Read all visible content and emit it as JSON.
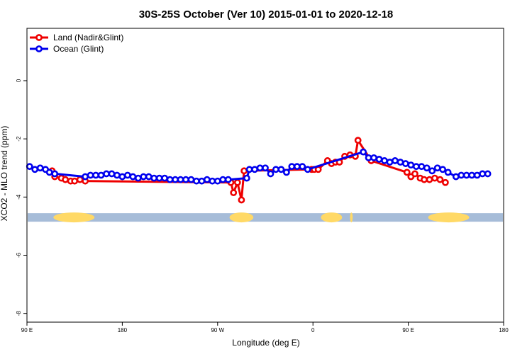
{
  "chart_data": {
    "type": "line",
    "title": "30S-25S October (Ver 10)   2015-01-01 to 2020-12-18",
    "xlabel": "Longitude (deg E)",
    "ylabel": "XCO2 - MLO trend (ppm)",
    "xlim": [
      90,
      450
    ],
    "ylim": [
      -8.3,
      1.8
    ],
    "x_ticks": [
      {
        "value": 90,
        "label": "90 E"
      },
      {
        "value": 162,
        "label": "180"
      },
      {
        "value": 234,
        "label": "90 W"
      },
      {
        "value": 306,
        "label": "0"
      },
      {
        "value": 378,
        "label": "90 E"
      },
      {
        "value": 450,
        "label": "180"
      }
    ],
    "y_ticks": [
      {
        "value": 0,
        "label": "0"
      },
      {
        "value": -2,
        "label": "-2"
      },
      {
        "value": -4,
        "label": "-4"
      },
      {
        "value": -6,
        "label": "-6"
      },
      {
        "value": -8,
        "label": "-8"
      }
    ],
    "legend_position": "top-left",
    "grid": false,
    "land_ocean_strip": {
      "y": -4.7,
      "ocean_color": "#a6bcd8",
      "land_color": "#ffd966",
      "land_ranges": [
        [
          110,
          141
        ],
        [
          243,
          261
        ],
        [
          312,
          328
        ],
        [
          334,
          336
        ],
        [
          393,
          424
        ]
      ]
    },
    "series": [
      {
        "name": "Land (Nadir&Glint)",
        "color": "#ee0000",
        "points": [
          [
            109,
            -3.1
          ],
          [
            111,
            -3.3
          ],
          [
            116,
            -3.35
          ],
          [
            119,
            -3.4
          ],
          [
            123,
            -3.45
          ],
          [
            126,
            -3.45
          ],
          [
            130,
            -3.4
          ],
          [
            134,
            -3.45
          ],
          [
            244,
            -3.5
          ],
          [
            246,
            -3.85
          ],
          [
            249,
            -3.5
          ],
          [
            252,
            -4.1
          ],
          [
            254,
            -3.1
          ],
          [
            305,
            -3.05
          ],
          [
            307,
            -3.05
          ],
          [
            310,
            -3.05
          ],
          [
            317,
            -2.75
          ],
          [
            320,
            -2.85
          ],
          [
            323,
            -2.8
          ],
          [
            326,
            -2.8
          ],
          [
            330,
            -2.6
          ],
          [
            334,
            -2.55
          ],
          [
            338,
            -2.6
          ],
          [
            340,
            -2.05
          ],
          [
            350,
            -2.75
          ],
          [
            377,
            -3.15
          ],
          [
            380,
            -3.3
          ],
          [
            383,
            -3.2
          ],
          [
            387,
            -3.35
          ],
          [
            390,
            -3.4
          ],
          [
            394,
            -3.4
          ],
          [
            398,
            -3.35
          ],
          [
            402,
            -3.4
          ],
          [
            406,
            -3.5
          ]
        ]
      },
      {
        "name": "Ocean (Glint)",
        "color": "#0000ee",
        "points": [
          [
            92,
            -2.95
          ],
          [
            96,
            -3.05
          ],
          [
            100,
            -3.0
          ],
          [
            104,
            -3.05
          ],
          [
            107,
            -3.15
          ],
          [
            111,
            -3.2
          ],
          [
            134,
            -3.3
          ],
          [
            138,
            -3.25
          ],
          [
            142,
            -3.25
          ],
          [
            146,
            -3.25
          ],
          [
            150,
            -3.2
          ],
          [
            154,
            -3.2
          ],
          [
            158,
            -3.25
          ],
          [
            162,
            -3.3
          ],
          [
            166,
            -3.25
          ],
          [
            170,
            -3.3
          ],
          [
            174,
            -3.35
          ],
          [
            178,
            -3.3
          ],
          [
            182,
            -3.3
          ],
          [
            186,
            -3.35
          ],
          [
            190,
            -3.35
          ],
          [
            194,
            -3.35
          ],
          [
            198,
            -3.4
          ],
          [
            202,
            -3.4
          ],
          [
            206,
            -3.4
          ],
          [
            210,
            -3.4
          ],
          [
            214,
            -3.4
          ],
          [
            218,
            -3.45
          ],
          [
            222,
            -3.45
          ],
          [
            226,
            -3.4
          ],
          [
            230,
            -3.45
          ],
          [
            234,
            -3.45
          ],
          [
            238,
            -3.4
          ],
          [
            242,
            -3.4
          ],
          [
            256,
            -3.35
          ],
          [
            258,
            -3.05
          ],
          [
            262,
            -3.05
          ],
          [
            266,
            -3.0
          ],
          [
            270,
            -3.0
          ],
          [
            274,
            -3.2
          ],
          [
            278,
            -3.05
          ],
          [
            282,
            -3.05
          ],
          [
            286,
            -3.15
          ],
          [
            290,
            -2.95
          ],
          [
            294,
            -2.95
          ],
          [
            298,
            -2.95
          ],
          [
            302,
            -3.05
          ],
          [
            344,
            -2.45
          ],
          [
            348,
            -2.65
          ],
          [
            352,
            -2.65
          ],
          [
            356,
            -2.7
          ],
          [
            360,
            -2.75
          ],
          [
            364,
            -2.8
          ],
          [
            368,
            -2.75
          ],
          [
            372,
            -2.8
          ],
          [
            376,
            -2.85
          ],
          [
            380,
            -2.9
          ],
          [
            384,
            -2.95
          ],
          [
            388,
            -2.95
          ],
          [
            392,
            -3.0
          ],
          [
            396,
            -3.1
          ],
          [
            400,
            -3.0
          ],
          [
            404,
            -3.05
          ],
          [
            408,
            -3.15
          ],
          [
            414,
            -3.3
          ],
          [
            418,
            -3.25
          ],
          [
            422,
            -3.25
          ],
          [
            426,
            -3.25
          ],
          [
            430,
            -3.25
          ],
          [
            434,
            -3.2
          ],
          [
            438,
            -3.2
          ]
        ]
      }
    ]
  }
}
